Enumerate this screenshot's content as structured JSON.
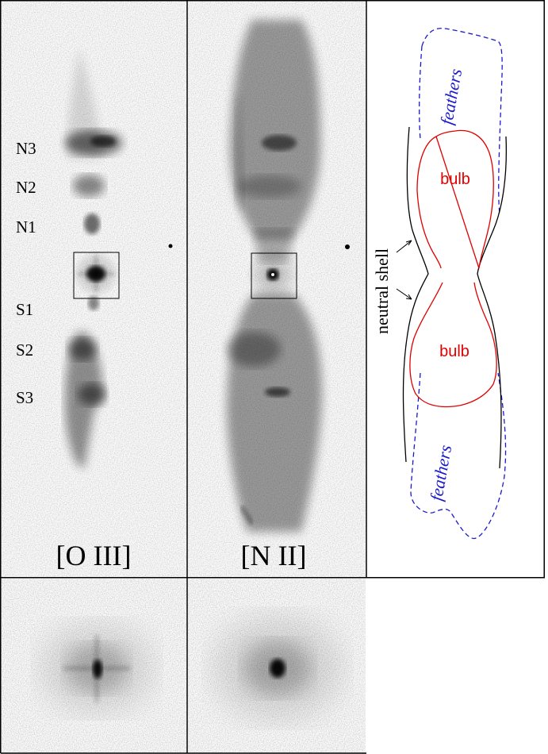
{
  "top_left_panel": {
    "filter_label": "[O III]",
    "knot_labels": [
      "N3",
      "N2",
      "N1",
      "S1",
      "S2",
      "S3"
    ]
  },
  "top_middle_panel": {
    "filter_label": "[N II]"
  },
  "sketch_panel": {
    "labels": {
      "feathers_top": "feathers",
      "bulb_top": "bulb",
      "neutral_shell": "neutral shell",
      "bulb_bottom": "bulb",
      "feathers_bottom": "feathers"
    }
  },
  "colors": {
    "frame": "#000000",
    "bulb_outline": "#e00000",
    "feathers_outline": "#1a1acc",
    "shell_outline": "#000000"
  }
}
